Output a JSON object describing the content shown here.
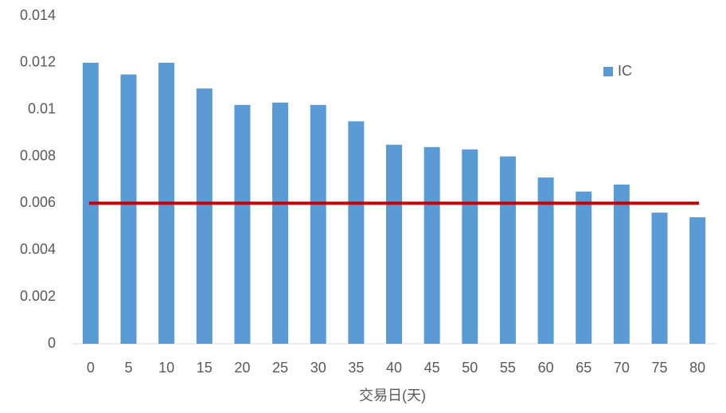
{
  "chart_data": {
    "type": "bar",
    "x_label": "交易日(天)",
    "categories": [
      "0",
      "5",
      "10",
      "15",
      "20",
      "25",
      "30",
      "35",
      "40",
      "45",
      "50",
      "55",
      "60",
      "65",
      "70",
      "75",
      "80"
    ],
    "series": [
      {
        "name": "IC",
        "color": "#5b9bd5",
        "values": [
          0.012,
          0.0115,
          0.012,
          0.0109,
          0.0102,
          0.0103,
          0.0102,
          0.0095,
          0.0085,
          0.0084,
          0.0083,
          0.008,
          0.0071,
          0.0065,
          0.0068,
          0.0056,
          0.0054
        ]
      }
    ],
    "reference_line": {
      "value": 0.006,
      "color": "#c00000"
    },
    "ylim": [
      0,
      0.014
    ],
    "yticks": [
      0,
      0.002,
      0.004,
      0.006,
      0.008,
      0.01,
      0.012,
      0.014
    ],
    "grid": false,
    "legend": "right"
  }
}
